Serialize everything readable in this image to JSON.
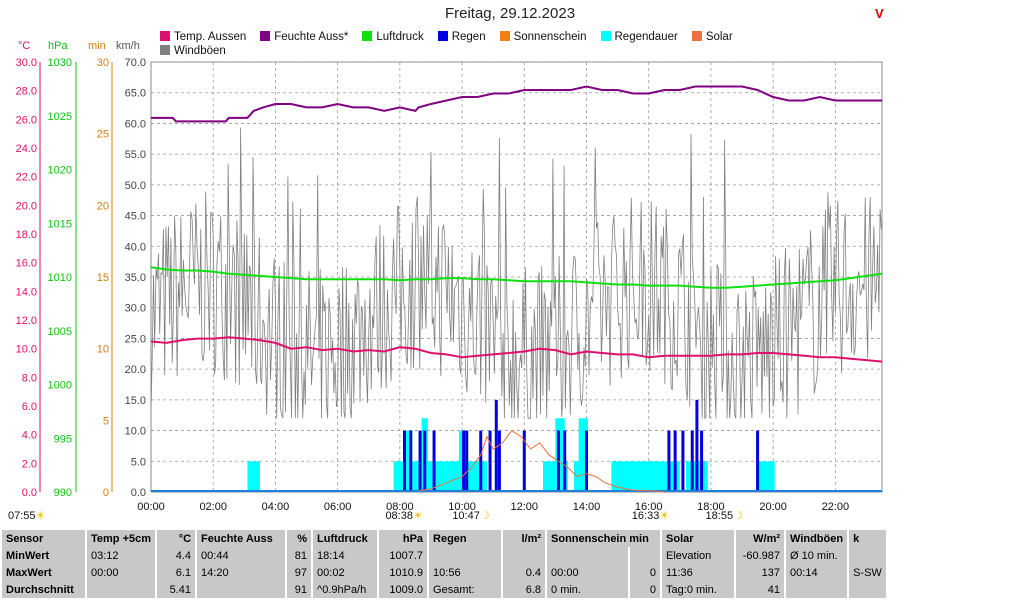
{
  "title": "Freitag, 29.12.2023",
  "warning_mark": "V",
  "legend": [
    {
      "name": "Temp. Aussen",
      "color": "#e0106e"
    },
    {
      "name": "Feuchte Auss*",
      "color": "#800080"
    },
    {
      "name": "Luftdruck",
      "color": "#10e010"
    },
    {
      "name": "Regen",
      "color": "#0000e0"
    },
    {
      "name": "Sonnenschein",
      "color": "#f08010"
    },
    {
      "name": "Regendauer",
      "color": "#00ffff"
    },
    {
      "name": "Solar",
      "color": "#f07040"
    },
    {
      "name": "Windböen",
      "color": "#808080"
    }
  ],
  "units": {
    "temp": "°C",
    "press": "hPa",
    "min": "min",
    "kmh": "km/h"
  },
  "axes": {
    "temp_ticks": [
      "0.0",
      "2.0",
      "4.0",
      "6.0",
      "8.0",
      "10.0",
      "12.0",
      "14.0",
      "16.0",
      "18.0",
      "20.0",
      "22.0",
      "24.0",
      "26.0",
      "28.0",
      "30.0"
    ],
    "press_ticks": [
      "990",
      "995",
      "1000",
      "1005",
      "1010",
      "1015",
      "1020",
      "1025",
      "1030"
    ],
    "min_ticks": [
      "0",
      "5",
      "10",
      "15",
      "20",
      "25",
      "30"
    ],
    "kmh_ticks": [
      "0.0",
      "5.0",
      "10.0",
      "15.0",
      "20.0",
      "25.0",
      "30.0",
      "35.0",
      "40.0",
      "45.0",
      "50.0",
      "55.0",
      "60.0",
      "65.0",
      "70.0"
    ],
    "x_ticks": [
      "00:00",
      "02:00",
      "04:00",
      "06:00",
      "08:00",
      "10:00",
      "12:00",
      "14:00",
      "16:00",
      "18:00",
      "20:00",
      "22:00"
    ]
  },
  "markers": [
    {
      "label": "07:55",
      "hour": 7.92,
      "kind": "sunrise"
    },
    {
      "label": "08:38",
      "hour": 8.63,
      "kind": "sun"
    },
    {
      "label": "10:47",
      "hour": 10.78,
      "kind": "moon"
    },
    {
      "label": "16:33",
      "hour": 16.55,
      "kind": "sunset"
    },
    {
      "label": "18:55",
      "hour": 18.92,
      "kind": "moon"
    }
  ],
  "chart_data": {
    "type": "line",
    "x_range_hours": [
      0,
      23.5
    ],
    "temp_range": [
      0,
      30
    ],
    "press_range": [
      990,
      1030
    ],
    "min_range": [
      0,
      30
    ],
    "kmh_range": [
      0,
      70
    ],
    "grid": true,
    "temperature": [
      [
        0,
        10.5
      ],
      [
        0.5,
        10.4
      ],
      [
        1,
        10.6
      ],
      [
        1.5,
        10.7
      ],
      [
        2,
        10.7
      ],
      [
        2.5,
        10.8
      ],
      [
        3,
        10.7
      ],
      [
        3.5,
        10.6
      ],
      [
        4,
        10.4
      ],
      [
        4.5,
        10.0
      ],
      [
        5,
        10.1
      ],
      [
        5.5,
        9.9
      ],
      [
        6,
        10.0
      ],
      [
        6.5,
        9.8
      ],
      [
        7,
        9.9
      ],
      [
        7.5,
        9.8
      ],
      [
        8,
        10.1
      ],
      [
        8.5,
        10.0
      ],
      [
        9,
        9.7
      ],
      [
        9.5,
        9.6
      ],
      [
        10,
        9.4
      ],
      [
        10.5,
        9.5
      ],
      [
        11,
        9.6
      ],
      [
        11.5,
        9.7
      ],
      [
        12,
        9.8
      ],
      [
        12.5,
        10.0
      ],
      [
        13,
        9.9
      ],
      [
        13.5,
        9.6
      ],
      [
        14,
        9.8
      ],
      [
        14.5,
        9.7
      ],
      [
        15,
        9.6
      ],
      [
        15.5,
        9.6
      ],
      [
        16,
        9.4
      ],
      [
        16.5,
        9.5
      ],
      [
        17,
        9.5
      ],
      [
        17.5,
        9.5
      ],
      [
        18,
        9.5
      ],
      [
        18.5,
        9.6
      ],
      [
        19,
        9.6
      ],
      [
        19.5,
        9.7
      ],
      [
        20,
        9.7
      ],
      [
        20.5,
        9.6
      ],
      [
        21,
        9.5
      ],
      [
        21.5,
        9.4
      ],
      [
        22,
        9.4
      ],
      [
        22.5,
        9.3
      ],
      [
        23,
        9.2
      ],
      [
        23.5,
        9.1
      ]
    ],
    "humidity": [
      [
        0,
        84
      ],
      [
        0.7,
        84
      ],
      [
        0.8,
        83
      ],
      [
        1.5,
        83
      ],
      [
        2.4,
        83
      ],
      [
        2.5,
        84
      ],
      [
        3.1,
        84
      ],
      [
        3.3,
        86
      ],
      [
        3.6,
        87
      ],
      [
        4,
        88
      ],
      [
        4.5,
        88
      ],
      [
        5,
        87
      ],
      [
        5.5,
        87
      ],
      [
        6,
        88
      ],
      [
        6.5,
        87
      ],
      [
        7,
        87
      ],
      [
        7.5,
        86
      ],
      [
        8,
        87
      ],
      [
        8.5,
        86
      ],
      [
        8.6,
        87
      ],
      [
        9,
        88
      ],
      [
        9.5,
        89
      ],
      [
        10,
        90
      ],
      [
        10.5,
        90
      ],
      [
        11,
        91
      ],
      [
        11.5,
        91
      ],
      [
        12,
        92
      ],
      [
        12.5,
        92
      ],
      [
        13,
        92
      ],
      [
        13.5,
        92
      ],
      [
        14,
        93
      ],
      [
        14.5,
        92
      ],
      [
        15,
        92
      ],
      [
        15.5,
        91
      ],
      [
        16,
        91
      ],
      [
        16.5,
        92
      ],
      [
        17,
        92
      ],
      [
        17.5,
        93
      ],
      [
        18,
        93
      ],
      [
        18.5,
        93
      ],
      [
        19,
        93
      ],
      [
        19.5,
        92
      ],
      [
        20,
        90
      ],
      [
        20.5,
        89
      ],
      [
        21,
        89
      ],
      [
        21.5,
        90
      ],
      [
        22,
        89
      ],
      [
        22.5,
        89
      ],
      [
        23,
        89
      ],
      [
        23.5,
        89
      ]
    ],
    "pressure": [
      [
        0,
        1010.9
      ],
      [
        0.5,
        1010.7
      ],
      [
        1,
        1010.6
      ],
      [
        1.5,
        1010.6
      ],
      [
        2,
        1010.5
      ],
      [
        2.5,
        1010.3
      ],
      [
        3,
        1010.2
      ],
      [
        3.5,
        1010.1
      ],
      [
        4,
        1010.0
      ],
      [
        4.5,
        1009.9
      ],
      [
        5,
        1009.8
      ],
      [
        5.5,
        1009.8
      ],
      [
        6,
        1009.8
      ],
      [
        6.5,
        1009.8
      ],
      [
        7,
        1009.8
      ],
      [
        7.5,
        1009.8
      ],
      [
        8,
        1009.7
      ],
      [
        8.5,
        1009.8
      ],
      [
        9,
        1009.8
      ],
      [
        9.5,
        1009.9
      ],
      [
        10,
        1009.9
      ],
      [
        10.5,
        1009.8
      ],
      [
        11,
        1009.8
      ],
      [
        11.5,
        1009.7
      ],
      [
        12,
        1009.6
      ],
      [
        12.5,
        1009.6
      ],
      [
        13,
        1009.6
      ],
      [
        13.5,
        1009.6
      ],
      [
        14,
        1009.5
      ],
      [
        14.5,
        1009.4
      ],
      [
        15,
        1009.3
      ],
      [
        15.5,
        1009.3
      ],
      [
        16,
        1009.2
      ],
      [
        16.5,
        1009.2
      ],
      [
        17,
        1009.2
      ],
      [
        17.5,
        1009.1
      ],
      [
        18,
        1009.0
      ],
      [
        18.5,
        1009.0
      ],
      [
        19,
        1009.1
      ],
      [
        19.5,
        1009.2
      ],
      [
        20,
        1009.3
      ],
      [
        20.5,
        1009.4
      ],
      [
        21,
        1009.5
      ],
      [
        21.5,
        1009.6
      ],
      [
        22,
        1009.7
      ],
      [
        22.5,
        1009.9
      ],
      [
        23,
        1010.1
      ],
      [
        23.5,
        1010.3
      ]
    ],
    "regendauer_spans": [
      [
        3.1,
        3.5
      ],
      [
        7.8,
        10.8
      ],
      [
        12.6,
        13.4
      ],
      [
        13.6,
        13.95
      ],
      [
        14.8,
        17.0
      ],
      [
        17.2,
        17.9
      ],
      [
        19.5,
        20.05
      ]
    ],
    "regendauer_peaks": [
      [
        8.2,
        8.4,
        10
      ],
      [
        8.7,
        8.9,
        12
      ],
      [
        9.9,
        10.1,
        10
      ],
      [
        13.0,
        13.3,
        12
      ],
      [
        13.75,
        14.05,
        12
      ]
    ],
    "regen_bars": [
      [
        8.15,
        10
      ],
      [
        8.35,
        10
      ],
      [
        8.65,
        10
      ],
      [
        8.8,
        10
      ],
      [
        9.1,
        10
      ],
      [
        10.05,
        10
      ],
      [
        10.15,
        10
      ],
      [
        10.6,
        10
      ],
      [
        10.9,
        10
      ],
      [
        11.1,
        15
      ],
      [
        11.2,
        10
      ],
      [
        12,
        10
      ],
      [
        13.1,
        10
      ],
      [
        13.3,
        10
      ],
      [
        14,
        10
      ],
      [
        16.65,
        10
      ],
      [
        16.85,
        10
      ],
      [
        17.1,
        10
      ],
      [
        17.4,
        10
      ],
      [
        17.55,
        15
      ],
      [
        17.7,
        10
      ],
      [
        19.5,
        10
      ]
    ],
    "solar": [
      [
        8.6,
        0.2
      ],
      [
        9.0,
        0.5
      ],
      [
        9.5,
        1.5
      ],
      [
        10.0,
        2.5
      ],
      [
        10.3,
        4
      ],
      [
        10.6,
        6
      ],
      [
        10.8,
        9
      ],
      [
        11.0,
        7
      ],
      [
        11.3,
        8
      ],
      [
        11.6,
        10
      ],
      [
        11.9,
        9
      ],
      [
        12.2,
        7
      ],
      [
        12.5,
        8
      ],
      [
        12.8,
        6
      ],
      [
        13.1,
        5
      ],
      [
        13.4,
        4
      ],
      [
        13.7,
        2.5
      ],
      [
        14.0,
        3
      ],
      [
        14.3,
        2.5
      ],
      [
        14.6,
        1.5
      ],
      [
        15.0,
        0.8
      ],
      [
        15.5,
        0.3
      ],
      [
        16.0,
        0.2
      ],
      [
        16.5,
        0.0
      ]
    ]
  },
  "stats": {
    "headers": [
      "Sensor",
      "Temp +5cm",
      "°C",
      "Feuchte Auss",
      "%",
      "Luftdruck",
      "hPa",
      "Regen",
      "l/m²",
      "Sonnenschein min",
      "Solar",
      "W/m²",
      "Windböen",
      "k"
    ],
    "rows": [
      [
        "MinWert",
        "03:12",
        "4.4",
        "00:44",
        "81",
        "18:14",
        "1007.7",
        "",
        "",
        "",
        "",
        "Elevation",
        "-60.987",
        "Ø 10 min.",
        ""
      ],
      [
        "MaxWert",
        "00:00",
        "6.1",
        "14:20",
        "97",
        "00:02",
        "1010.9",
        "10:56",
        "0.4",
        "00:00",
        "0",
        "11:36",
        "137",
        "00:14",
        "S-SW"
      ],
      [
        "Durchschnitt",
        "",
        "5.41",
        "",
        "91",
        "^0.9hPa/h",
        "1009.0",
        "Gesamt:",
        "6.8",
        "0 min.",
        "0",
        "Tag:0 min.",
        "41",
        "",
        ""
      ]
    ]
  }
}
